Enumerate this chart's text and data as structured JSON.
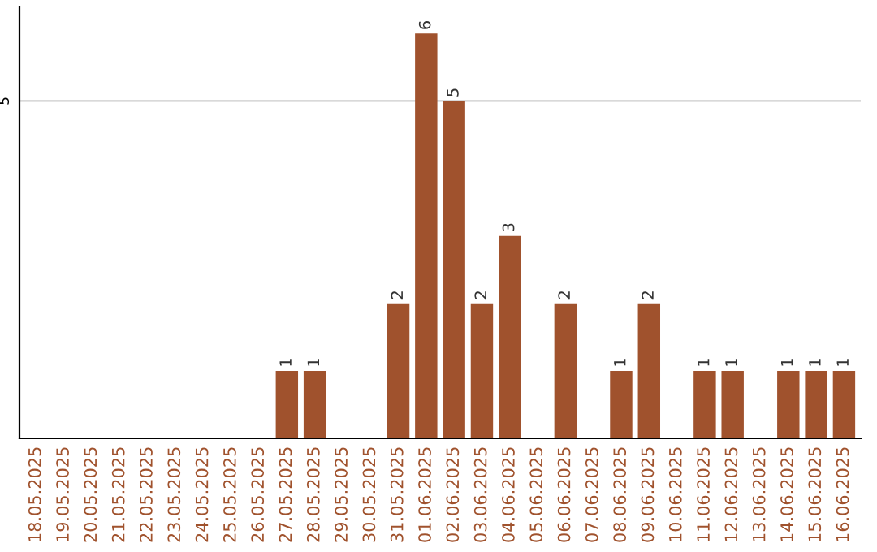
{
  "chart_data": {
    "type": "bar",
    "categories": [
      "18.05.2025",
      "19.05.2025",
      "20.05.2025",
      "21.05.2025",
      "22.05.2025",
      "23.05.2025",
      "24.05.2025",
      "25.05.2025",
      "26.05.2025",
      "27.05.2025",
      "28.05.2025",
      "29.05.2025",
      "30.05.2025",
      "31.05.2025",
      "01.06.2025",
      "02.06.2025",
      "03.06.2025",
      "04.06.2025",
      "05.06.2025",
      "06.06.2025",
      "07.06.2025",
      "08.06.2025",
      "09.06.2025",
      "10.06.2025",
      "11.06.2025",
      "12.06.2025",
      "13.06.2025",
      "14.06.2025",
      "15.06.2025",
      "16.06.2025"
    ],
    "values": [
      0,
      0,
      0,
      0,
      0,
      0,
      0,
      0,
      0,
      1,
      1,
      0,
      0,
      2,
      6,
      5,
      2,
      3,
      0,
      2,
      0,
      1,
      2,
      0,
      1,
      1,
      0,
      1,
      1,
      1
    ],
    "value_labels": [
      null,
      null,
      null,
      null,
      null,
      null,
      null,
      null,
      null,
      "1",
      "1",
      null,
      null,
      "2",
      "6",
      "5",
      "2",
      "3",
      null,
      "2",
      null,
      "1",
      "2",
      null,
      "1",
      "1",
      null,
      "1",
      "1",
      "1"
    ],
    "color": "#a0522d",
    "ylim": [
      0,
      6.4
    ],
    "yticks": [
      5
    ],
    "grid": "y"
  }
}
